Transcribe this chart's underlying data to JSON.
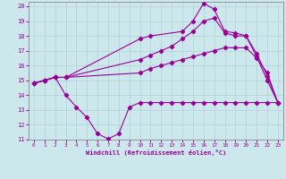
{
  "xlabel": "Windchill (Refroidissement éolien,°C)",
  "xlim": [
    0,
    23
  ],
  "ylim": [
    11,
    20
  ],
  "yticks": [
    11,
    12,
    13,
    14,
    15,
    16,
    17,
    18,
    19,
    20
  ],
  "xticks": [
    0,
    1,
    2,
    3,
    4,
    5,
    6,
    7,
    8,
    9,
    10,
    11,
    12,
    13,
    14,
    15,
    16,
    17,
    18,
    19,
    20,
    21,
    22,
    23
  ],
  "bg_color": "#cde8ed",
  "grid_color": "#b8d8de",
  "line_color": "#990099",
  "lines": [
    {
      "x": [
        0,
        1,
        2,
        3,
        4,
        5,
        6,
        7,
        8,
        9,
        10,
        11,
        12,
        13,
        14,
        15,
        16,
        17,
        18,
        19,
        20,
        21,
        22,
        23
      ],
      "y": [
        14.8,
        15.0,
        15.2,
        14.0,
        13.2,
        12.5,
        11.4,
        11.05,
        11.4,
        13.2,
        13.5,
        13.5,
        13.5,
        13.5,
        13.5,
        13.5,
        13.5,
        13.5,
        13.5,
        13.5,
        13.5,
        13.5,
        13.5,
        13.5
      ]
    },
    {
      "x": [
        0,
        1,
        2,
        3,
        10,
        11,
        12,
        13,
        14,
        15,
        16,
        17,
        18,
        19,
        20,
        21,
        22,
        23
      ],
      "y": [
        14.8,
        15.0,
        15.2,
        15.2,
        15.5,
        15.8,
        16.0,
        16.2,
        16.4,
        16.6,
        16.8,
        17.0,
        17.2,
        17.2,
        17.2,
        16.5,
        15.5,
        13.5
      ]
    },
    {
      "x": [
        0,
        1,
        2,
        3,
        10,
        11,
        12,
        13,
        14,
        15,
        16,
        17,
        18,
        19,
        20,
        21,
        22,
        23
      ],
      "y": [
        14.8,
        15.0,
        15.2,
        15.2,
        16.4,
        16.7,
        17.0,
        17.3,
        17.8,
        18.3,
        19.0,
        19.2,
        18.2,
        18.0,
        18.0,
        16.8,
        15.3,
        13.5
      ]
    },
    {
      "x": [
        0,
        1,
        2,
        3,
        10,
        11,
        14,
        15,
        16,
        17,
        18,
        19,
        20,
        21,
        22,
        23
      ],
      "y": [
        14.8,
        15.0,
        15.2,
        15.2,
        17.8,
        18.0,
        18.3,
        19.0,
        20.2,
        19.8,
        18.3,
        18.2,
        18.0,
        16.6,
        15.0,
        13.5
      ]
    }
  ]
}
